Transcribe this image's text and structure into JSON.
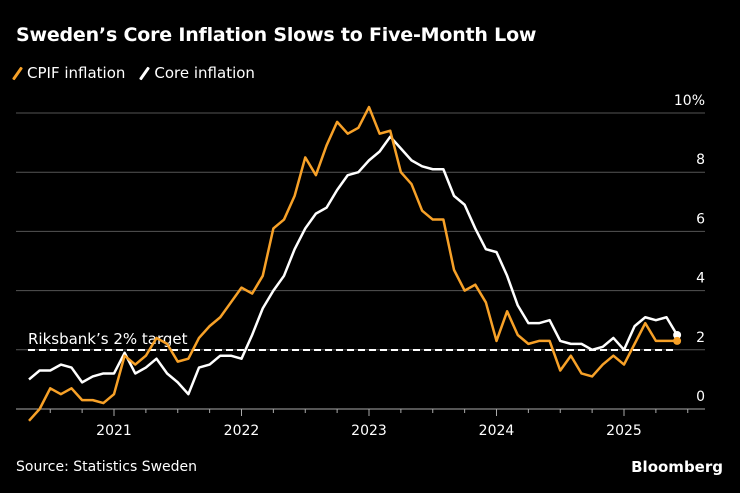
{
  "title": "Sweden’s Core Inflation Slows to Five-Month Low",
  "source": "Source: Statistics Sweden",
  "brand": "Bloomberg",
  "chart_data": {
    "type": "line",
    "title": "Sweden’s Core Inflation Slows to Five-Month Low",
    "x_start": "2020-05",
    "x_end": "2025-06",
    "x_frequency": "monthly",
    "x_ticks": [
      "2021",
      "2022",
      "2023",
      "2024",
      "2025"
    ],
    "y_ticks": [
      "0",
      "2",
      "4",
      "6",
      "8",
      "10%"
    ],
    "ylim": [
      0,
      10
    ],
    "grid": true,
    "legend": "top-left",
    "annotation": {
      "label": "Riksbank’s 2% target",
      "value": 2
    },
    "series": [
      {
        "name": "CPIF inflation",
        "color": "#F7A128",
        "values": [
          -0.4,
          0.0,
          0.7,
          0.5,
          0.7,
          0.3,
          0.3,
          0.2,
          0.5,
          1.8,
          1.5,
          1.8,
          2.4,
          2.2,
          1.6,
          1.7,
          2.4,
          2.8,
          3.1,
          3.6,
          4.1,
          3.9,
          4.5,
          6.1,
          6.4,
          7.2,
          8.5,
          7.9,
          8.9,
          9.7,
          9.3,
          9.5,
          10.2,
          9.3,
          9.4,
          8.0,
          7.6,
          6.7,
          6.4,
          6.4,
          4.7,
          4.0,
          4.2,
          3.6,
          2.3,
          3.3,
          2.5,
          2.2,
          2.3,
          2.3,
          1.3,
          1.8,
          1.2,
          1.1,
          1.5,
          1.8,
          1.5,
          2.2,
          2.9,
          2.3,
          2.3,
          2.3
        ]
      },
      {
        "name": "Core inflation",
        "color": "#FFFFFF",
        "values": [
          1.0,
          1.3,
          1.3,
          1.5,
          1.4,
          0.9,
          1.1,
          1.2,
          1.2,
          1.9,
          1.2,
          1.4,
          1.7,
          1.2,
          0.9,
          0.5,
          1.4,
          1.5,
          1.8,
          1.8,
          1.7,
          2.5,
          3.4,
          4.0,
          4.5,
          5.4,
          6.1,
          6.6,
          6.8,
          7.4,
          7.9,
          8.0,
          8.4,
          8.7,
          9.2,
          8.8,
          8.4,
          8.2,
          8.1,
          8.1,
          7.2,
          6.9,
          6.1,
          5.4,
          5.3,
          4.5,
          3.5,
          2.9,
          2.9,
          3.0,
          2.3,
          2.2,
          2.2,
          2.0,
          2.1,
          2.4,
          2.0,
          2.8,
          3.1,
          3.0,
          3.1,
          2.5
        ]
      }
    ]
  }
}
